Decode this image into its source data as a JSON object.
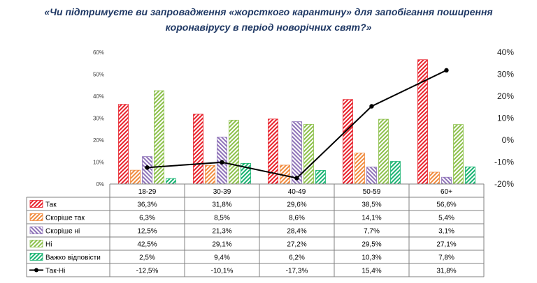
{
  "title_line1": "«Чи підтримуєте ви запровадження «жорсткого карантину» для запобігання поширення",
  "title_line2": "коронавірусу в період новорічних свят?»",
  "chart_data": {
    "type": "bar",
    "categories": [
      "18-29",
      "30-39",
      "40-49",
      "50-59",
      "60+"
    ],
    "series": [
      {
        "name": "Так",
        "values": [
          36.3,
          31.8,
          29.6,
          38.5,
          56.6
        ],
        "labels": [
          "36,3%",
          "31,8%",
          "29,6%",
          "38,5%",
          "56,6%"
        ],
        "color": "#e8202a",
        "axis": "left"
      },
      {
        "name": "Скоріше так",
        "values": [
          6.3,
          8.5,
          8.6,
          14.1,
          5.4
        ],
        "labels": [
          "6,3%",
          "8,5%",
          "8,6%",
          "14,1%",
          "5,4%"
        ],
        "color": "#f08a3c",
        "axis": "left"
      },
      {
        "name": "Скоріше ні",
        "values": [
          12.5,
          21.3,
          28.4,
          7.7,
          3.1
        ],
        "labels": [
          "12,5%",
          "21,3%",
          "28,4%",
          "7,7%",
          "3,1%"
        ],
        "color": "#8e72b8",
        "axis": "left"
      },
      {
        "name": "Ні",
        "values": [
          42.5,
          29.1,
          27.2,
          29.5,
          27.1
        ],
        "labels": [
          "42,5%",
          "29,1%",
          "27,2%",
          "29,5%",
          "27,1%"
        ],
        "color": "#8cc04a",
        "axis": "left"
      },
      {
        "name": "Важко відповісти",
        "values": [
          2.5,
          9.4,
          6.2,
          10.3,
          7.8
        ],
        "labels": [
          "2,5%",
          "9,4%",
          "6,2%",
          "10,3%",
          "7,8%"
        ],
        "color": "#17b371",
        "axis": "left"
      },
      {
        "name": "Так-Ні",
        "type": "line",
        "values": [
          -12.5,
          -10.1,
          -17.3,
          15.4,
          31.8
        ],
        "labels": [
          "-12,5%",
          "-10,1%",
          "-17,3%",
          "15,4%",
          "31,8%"
        ],
        "color": "#000000",
        "axis": "right"
      }
    ],
    "y_left": {
      "ylim": [
        0,
        60
      ],
      "ticks": [
        "0%",
        "10%",
        "20%",
        "30%",
        "40%",
        "50%",
        "60%"
      ]
    },
    "y_right": {
      "ylim": [
        -20,
        40
      ],
      "ticks": [
        "-20%",
        "-10%",
        "0%",
        "10%",
        "20%",
        "30%",
        "40%"
      ]
    },
    "grid": false,
    "legend": "data table"
  }
}
